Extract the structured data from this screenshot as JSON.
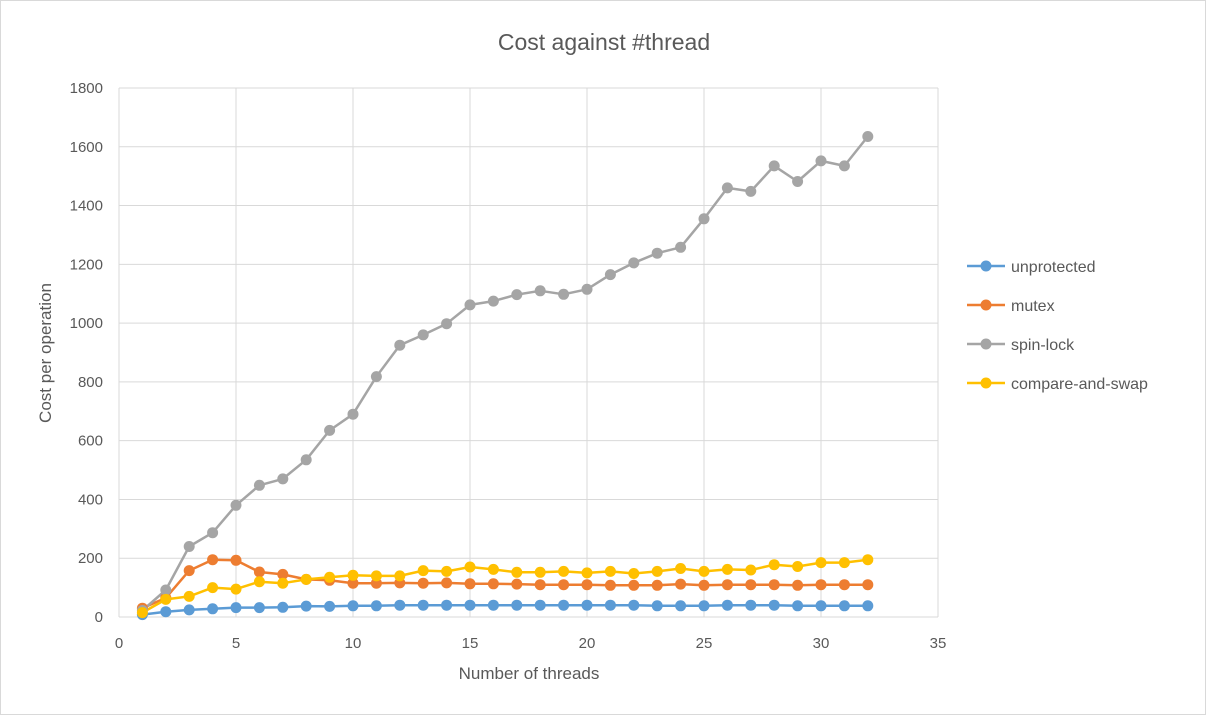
{
  "chart_data": {
    "type": "line",
    "title": "Cost against #thread",
    "xlabel": "Number of threads",
    "ylabel": "Cost per operation",
    "xlim": [
      0,
      35
    ],
    "ylim": [
      0,
      1800
    ],
    "x_ticks": [
      0,
      5,
      10,
      15,
      20,
      25,
      30,
      35
    ],
    "y_ticks": [
      0,
      200,
      400,
      600,
      800,
      1000,
      1200,
      1400,
      1600,
      1800
    ],
    "grid": true,
    "legend_position": "right",
    "x": [
      1,
      2,
      3,
      4,
      5,
      6,
      7,
      8,
      9,
      10,
      11,
      12,
      13,
      14,
      15,
      16,
      17,
      18,
      19,
      20,
      21,
      22,
      23,
      24,
      25,
      26,
      27,
      28,
      29,
      30,
      31,
      32
    ],
    "series": [
      {
        "name": "unprotected",
        "color": "#5b9bd5",
        "values": [
          8,
          18,
          24,
          28,
          32,
          32,
          33,
          37,
          36,
          38,
          38,
          40,
          40,
          40,
          40,
          40,
          40,
          40,
          40,
          40,
          40,
          40,
          38,
          38,
          38,
          40,
          40,
          40,
          38,
          38,
          38,
          38
        ]
      },
      {
        "name": "mutex",
        "color": "#ed7d31",
        "values": [
          30,
          65,
          158,
          195,
          193,
          153,
          145,
          128,
          125,
          115,
          115,
          116,
          115,
          116,
          113,
          113,
          112,
          110,
          110,
          110,
          108,
          108,
          108,
          112,
          108,
          110,
          110,
          110,
          108,
          110,
          110,
          110
        ]
      },
      {
        "name": "spin-lock",
        "color": "#a5a5a5",
        "values": [
          22,
          92,
          240,
          287,
          380,
          448,
          470,
          535,
          635,
          690,
          818,
          925,
          960,
          998,
          1062,
          1075,
          1097,
          1110,
          1098,
          1115,
          1165,
          1205,
          1238,
          1258,
          1355,
          1460,
          1448,
          1535,
          1482,
          1552,
          1535,
          1635
        ]
      },
      {
        "name": "compare-and-swap",
        "color": "#ffc000",
        "values": [
          15,
          60,
          70,
          100,
          95,
          120,
          115,
          128,
          135,
          142,
          140,
          140,
          158,
          155,
          170,
          162,
          152,
          152,
          155,
          150,
          155,
          148,
          155,
          165,
          155,
          162,
          160,
          178,
          172,
          185,
          185,
          195
        ]
      }
    ]
  }
}
